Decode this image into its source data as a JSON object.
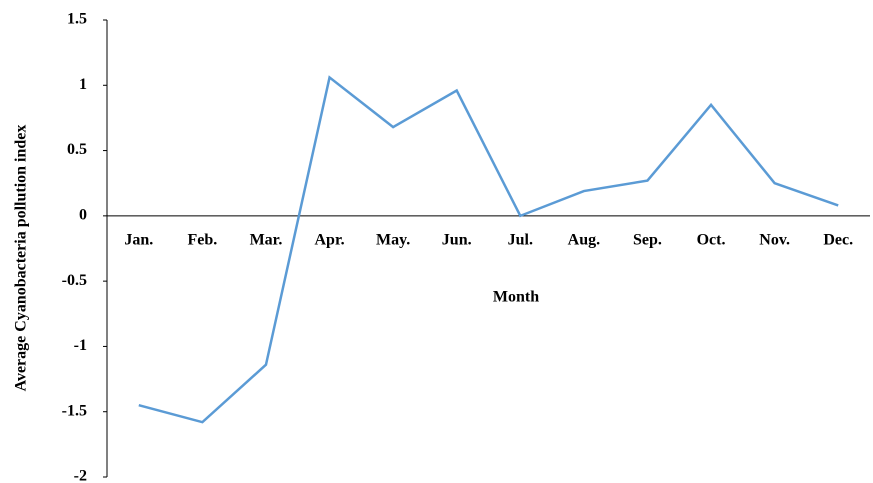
{
  "chart_data": {
    "type": "line",
    "x_label": "Month",
    "y_label": "Average Cyanobacteria pollution index",
    "categories": [
      "Jan.",
      "Feb.",
      "Mar.",
      "Apr.",
      "May.",
      "Jun.",
      "Jul.",
      "Aug.",
      "Sep.",
      "Oct.",
      "Nov.",
      "Dec."
    ],
    "values": [
      -1.45,
      -1.58,
      -1.14,
      1.06,
      0.68,
      0.96,
      0,
      0.19,
      0.27,
      0.85,
      0.25,
      0.08
    ],
    "color": "#5b9bd5",
    "ylim": [
      -2,
      1.5
    ],
    "yticks": [
      -2,
      -1.5,
      -1,
      -0.5,
      0,
      0.5,
      1,
      1.5
    ],
    "grid": false
  }
}
